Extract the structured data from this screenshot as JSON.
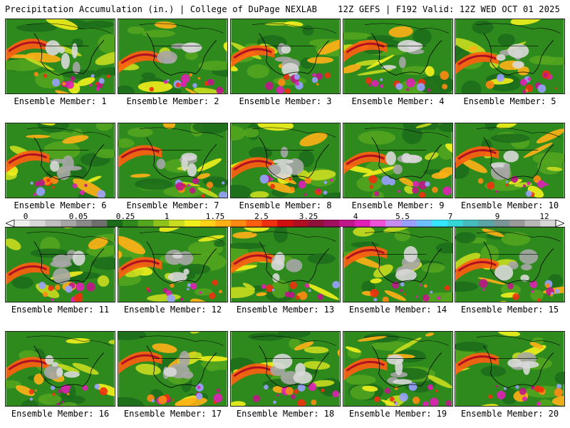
{
  "header": {
    "left_title": "Precipitation Accumulation (in.) | College of DuPage NEXLAB",
    "right_title": "12Z GEFS | F192 Valid: 12Z WED OCT 01 2025"
  },
  "legend": {
    "tick_labels": [
      "0",
      "0.05",
      "0.25",
      "1",
      "1.75",
      "2.5",
      "3.25",
      "4",
      "5.5",
      "7",
      "9",
      "12"
    ],
    "colors": [
      "#f0f0f0",
      "#d8d8d8",
      "#bfbfbf",
      "#a6a6a6",
      "#8a8a8a",
      "#6f6f6f",
      "#1b6b1b",
      "#2f8a1e",
      "#55a61f",
      "#8fc21b",
      "#c9dc1f",
      "#f2f01c",
      "#ffd21a",
      "#ffb016",
      "#ff8a12",
      "#ff5e10",
      "#f0300f",
      "#d0100f",
      "#b00f24",
      "#8f1038",
      "#a0105e",
      "#c0168a",
      "#e11fb6",
      "#ee52d6",
      "#c78cf0",
      "#9aa0ff",
      "#6cc0ff",
      "#35e6ff",
      "#35d6d6",
      "#46bcbc",
      "#5aa5a5",
      "#7a9696",
      "#9a9a9a",
      "#b8b8b8",
      "#d6d6d6"
    ]
  },
  "panels": [
    {
      "label": "Ensemble Member: 1"
    },
    {
      "label": "Ensemble Member: 2"
    },
    {
      "label": "Ensemble Member: 3"
    },
    {
      "label": "Ensemble Member: 4"
    },
    {
      "label": "Ensemble Member: 5"
    },
    {
      "label": "Ensemble Member: 6"
    },
    {
      "label": "Ensemble Member: 7"
    },
    {
      "label": "Ensemble Member: 8"
    },
    {
      "label": "Ensemble Member: 9"
    },
    {
      "label": "Ensemble Member: 10"
    },
    {
      "label": "Ensemble Member: 11"
    },
    {
      "label": "Ensemble Member: 12"
    },
    {
      "label": "Ensemble Member: 13"
    },
    {
      "label": "Ensemble Member: 14"
    },
    {
      "label": "Ensemble Member: 15"
    },
    {
      "label": "Ensemble Member: 16"
    },
    {
      "label": "Ensemble Member: 17"
    },
    {
      "label": "Ensemble Member: 18"
    },
    {
      "label": "Ensemble Member: 19"
    },
    {
      "label": "Ensemble Member: 20"
    }
  ]
}
